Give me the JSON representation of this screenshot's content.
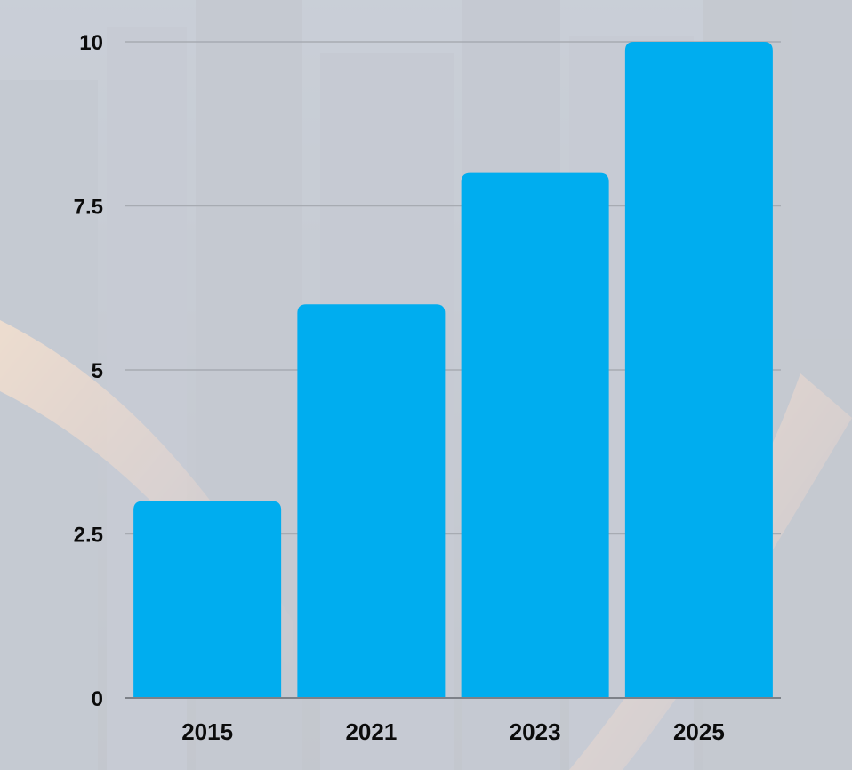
{
  "chart_data": {
    "type": "bar",
    "categories": [
      "2015",
      "2021",
      "2023",
      "2025"
    ],
    "values": [
      3,
      6,
      8,
      10
    ],
    "title": "",
    "xlabel": "",
    "ylabel": "",
    "ylim": [
      0,
      10
    ],
    "yticks": [
      "0",
      "2.5",
      "5",
      "7.5",
      "10"
    ],
    "grid": true,
    "legend": "none",
    "bar_color": "#00adef",
    "gridline_color": "#a7abb2",
    "axis_color": "#7d8188",
    "background": "city skyline at night, faded"
  }
}
